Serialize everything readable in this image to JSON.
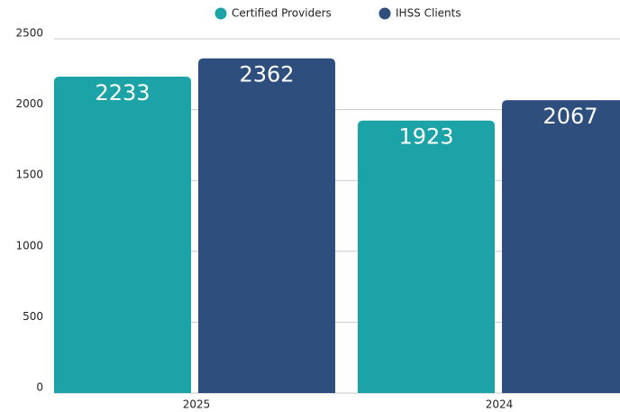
{
  "chart_data": {
    "type": "bar",
    "categories": [
      "2025",
      "2024"
    ],
    "series": [
      {
        "name": "Certified Providers",
        "color": "#1ba3a8",
        "values": [
          2233,
          1923
        ]
      },
      {
        "name": "IHSS Clients",
        "color": "#2e4e7e",
        "values": [
          2362,
          2067
        ]
      }
    ],
    "ylim": [
      0,
      2500
    ],
    "yticks": [
      0,
      500,
      1000,
      1500,
      2000,
      2500
    ],
    "grid": true,
    "legend": "top"
  }
}
